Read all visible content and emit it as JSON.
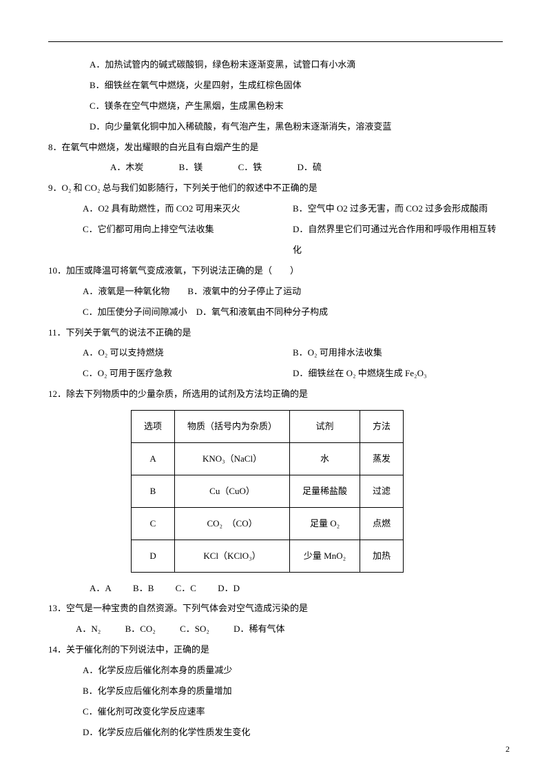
{
  "q7": {
    "optA": "A．加热试管内的碱式碳酸铜，绿色粉末逐渐变黑，试管口有小水滴",
    "optB": "B．细铁丝在氧气中燃烧，火星四射，生成红棕色固体",
    "optC": "C．镁条在空气中燃烧，产生黑烟，生成黑色粉末",
    "optD": "D．向少量氧化铜中加入稀硫酸，有气泡产生，黑色粉末逐渐消失，溶液变蓝"
  },
  "q8": {
    "stem": "8．在氧气中燃烧，发出耀眼的白光且有白烟产生的是",
    "optA": "A．木炭",
    "optB": "B．镁",
    "optC": "C．铁",
    "optD": "D．硫"
  },
  "q9": {
    "stem": "9．O₂ 和 CO₂ 总与我们如影随行，下列关于他们的叙述中不正确的是",
    "optA": "A．O2 具有助燃性，而 CO2 可用来灭火",
    "optB": "B．空气中 O2 过多无害，而 CO2 过多会形成酸雨",
    "optC": "C．它们都可用向上排空气法收集",
    "optD": "D．自然界里它们可通过光合作用和呼吸作用相互转化"
  },
  "q10": {
    "stem": "10．加压或降温可将氧气变成液氧，下列说法正确的是（　　）",
    "optA": "A．液氧是一种氧化物",
    "optB": "B．液氧中的分子停止了运动",
    "optC": "C．加压使分子间间隙减小",
    "optD": "D．氧气和液氧由不同种分子构成"
  },
  "q11": {
    "stem": "11．下列关于氧气的说法不正确的是",
    "optA": "A．O₂ 可以支持燃烧",
    "optB": "B．O₂ 可用排水法收集",
    "optC": "C．O₂ 可用于医疗急救",
    "optD": "D．细铁丝在 O₂ 中燃烧生成 Fe₂O₃"
  },
  "q12": {
    "stem": "12．除去下列物质中的少量杂质，所选用的试剂及方法均正确的是",
    "headers": [
      "选项",
      "物质（括号内为杂质）",
      "试剂",
      "方法"
    ],
    "rows": [
      [
        "A",
        "KNO₃（NaCl）",
        "水",
        "蒸发"
      ],
      [
        "B",
        "Cu（CuO）",
        "足量稀盐酸",
        "过滤"
      ],
      [
        "C",
        "CO₂　（CO）",
        "足量 O₂",
        "点燃"
      ],
      [
        "D",
        "KCl（KClO₃）",
        "少量 MnO₂",
        "加热"
      ]
    ],
    "answers": [
      "A．A",
      "B．B",
      "C．C",
      "D．D"
    ]
  },
  "q13": {
    "stem": "13．空气是一种宝贵的自然资源。下列气体会对空气造成污染的是",
    "optA": "A．N₂",
    "optB": "B．CO₂",
    "optC": "C．SO₂",
    "optD": "D．稀有气体"
  },
  "q14": {
    "stem": "14．关于催化剂的下列说法中，正确的是",
    "optA": "A．化学反应后催化剂本身的质量减少",
    "optB": "B．化学反应后催化剂本身的质量增加",
    "optC": "C．催化剂可改变化学反应速率",
    "optD": "D．化学反应后催化剂的化学性质发生变化"
  },
  "pageNumber": "2"
}
